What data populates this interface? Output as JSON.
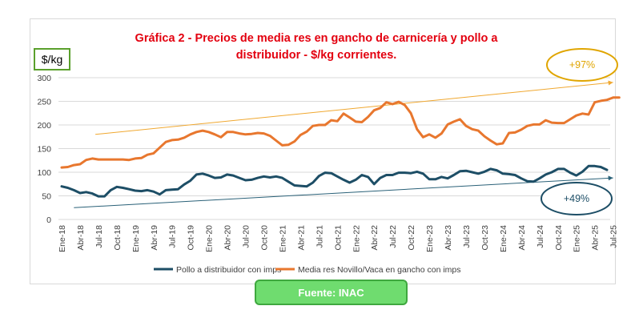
{
  "chart_data": {
    "type": "line",
    "title": "Gráfica 2 - Precios de media res en gancho de carnicería y pollo a distribuidor - $/kg corrientes.",
    "unit_label": "$/kg",
    "ylim": [
      0,
      300
    ],
    "yticks": [
      0,
      50,
      100,
      150,
      200,
      250,
      300
    ],
    "grid": true,
    "legend_position": "bottom",
    "x_labels": [
      "Ene-18",
      "Abr-18",
      "Jul-18",
      "Oct-18",
      "Ene-19",
      "Abr-19",
      "Jul-19",
      "Oct-19",
      "Ene-20",
      "Abr-20",
      "Jul-20",
      "Oct-20",
      "Ene-21",
      "Abr-21",
      "Jul-21",
      "Oct-21",
      "Ene-22",
      "Abr-22",
      "Jul-22",
      "Oct-22",
      "Ene-23",
      "Abr-23",
      "Jul-23",
      "Oct-23",
      "Ene-24",
      "Abr-24",
      "Jul-24",
      "Oct-24",
      "Ene-25",
      "Abr-25",
      "Jul-25"
    ],
    "series": [
      {
        "name": "Pollo a distribuidor con imps",
        "color": "#1d4e66",
        "values": [
          70,
          67,
          62,
          56,
          58,
          55,
          49,
          49,
          62,
          69,
          67,
          64,
          61,
          60,
          62,
          59,
          53,
          62,
          63,
          64,
          74,
          82,
          95,
          97,
          93,
          88,
          89,
          95,
          93,
          88,
          83,
          84,
          88,
          91,
          89,
          91,
          88,
          80,
          72,
          71,
          70,
          78,
          92,
          99,
          98,
          91,
          84,
          78,
          84,
          94,
          90,
          75,
          88,
          94,
          94,
          99,
          99,
          98,
          101,
          97,
          85,
          85,
          90,
          87,
          94,
          102,
          103,
          100,
          97,
          101,
          107,
          104,
          97,
          96,
          94,
          87,
          81,
          80,
          87,
          95,
          100,
          107,
          107,
          99,
          93,
          101,
          113,
          113,
          111,
          105
        ]
      },
      {
        "name": "Media res Novillo/Vaca en gancho con imps",
        "color": "#e8772e",
        "values": [
          110,
          111,
          115,
          117,
          126,
          129,
          127,
          127,
          127,
          127,
          127,
          126,
          129,
          130,
          137,
          140,
          152,
          164,
          168,
          169,
          173,
          180,
          185,
          188,
          185,
          180,
          174,
          185,
          185,
          182,
          180,
          181,
          183,
          182,
          177,
          167,
          157,
          158,
          165,
          179,
          186,
          198,
          200,
          200,
          210,
          208,
          224,
          216,
          207,
          206,
          217,
          231,
          236,
          248,
          244,
          249,
          242,
          225,
          191,
          174,
          180,
          173,
          182,
          201,
          207,
          212,
          198,
          191,
          188,
          176,
          167,
          159,
          161,
          183,
          184,
          190,
          198,
          201,
          201,
          210,
          205,
          204,
          204,
          212,
          220,
          224,
          222,
          248,
          251,
          253,
          258,
          258
        ]
      }
    ],
    "annotations": [
      {
        "label": "+97%",
        "color": "#e0a500",
        "trend_color": "#f0a830",
        "trend_start": [
          5.5,
          180
        ],
        "trend_end": [
          90,
          290
        ]
      },
      {
        "label": "+49%",
        "color": "#1d4e66",
        "trend_color": "#2a6178",
        "trend_start": [
          2,
          25
        ],
        "trend_end": [
          90,
          88
        ]
      }
    ],
    "source": "Fuente: INAC"
  }
}
